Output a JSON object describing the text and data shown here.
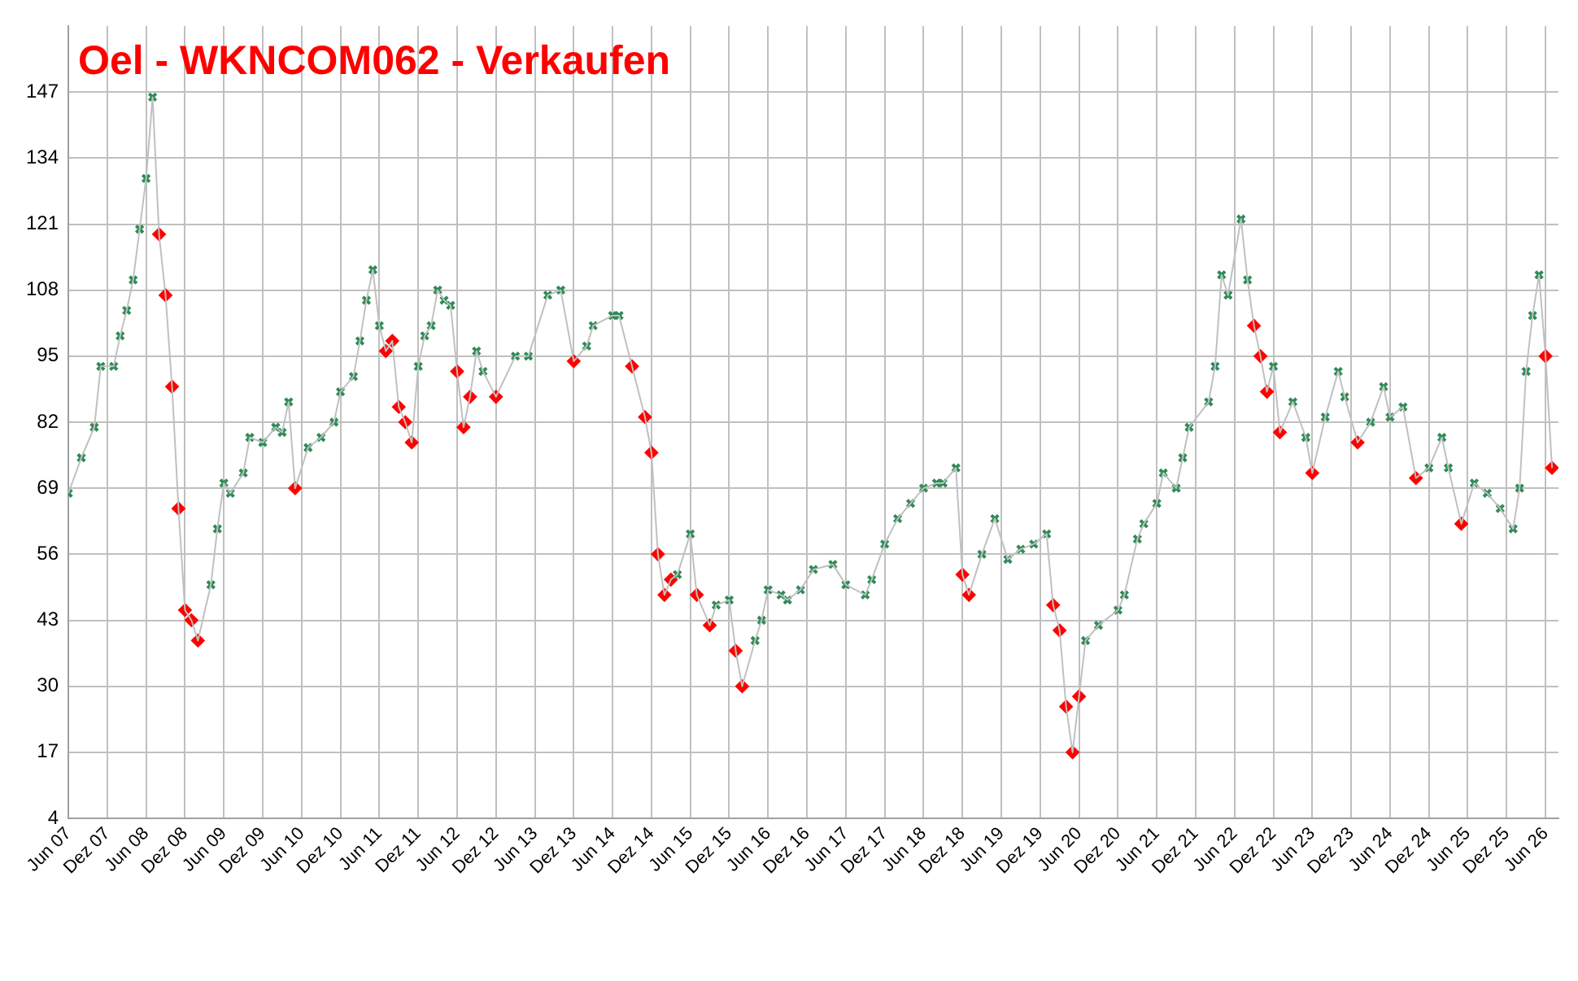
{
  "chart_data": {
    "type": "line",
    "title": "Oel - WKNCOM062 - Verkaufen",
    "xlim": [
      "2007-06",
      "2026-08"
    ],
    "xticks": [
      {
        "value": "2007-06",
        "label": "Jun 07"
      },
      {
        "value": "2007-12",
        "label": "Dez 07"
      },
      {
        "value": "2008-06",
        "label": "Jun 08"
      },
      {
        "value": "2008-12",
        "label": "Dez 08"
      },
      {
        "value": "2009-06",
        "label": "Jun 09"
      },
      {
        "value": "2009-12",
        "label": "Dez 09"
      },
      {
        "value": "2010-06",
        "label": "Jun 10"
      },
      {
        "value": "2010-12",
        "label": "Dez 10"
      },
      {
        "value": "2011-06",
        "label": "Jun 11"
      },
      {
        "value": "2011-12",
        "label": "Dez 11"
      },
      {
        "value": "2012-06",
        "label": "Jun 12"
      },
      {
        "value": "2012-12",
        "label": "Dez 12"
      },
      {
        "value": "2013-06",
        "label": "Jun 13"
      },
      {
        "value": "2013-12",
        "label": "Dez 13"
      },
      {
        "value": "2014-06",
        "label": "Jun 14"
      },
      {
        "value": "2014-12",
        "label": "Dez 14"
      },
      {
        "value": "2015-06",
        "label": "Jun 15"
      },
      {
        "value": "2015-12",
        "label": "Dez 15"
      },
      {
        "value": "2016-06",
        "label": "Jun 16"
      },
      {
        "value": "2016-12",
        "label": "Dez 16"
      },
      {
        "value": "2017-06",
        "label": "Jun 17"
      },
      {
        "value": "2017-12",
        "label": "Dez 17"
      },
      {
        "value": "2018-06",
        "label": "Jun 18"
      },
      {
        "value": "2018-12",
        "label": "Dez 18"
      },
      {
        "value": "2019-06",
        "label": "Jun 19"
      },
      {
        "value": "2019-12",
        "label": "Dez 19"
      },
      {
        "value": "2020-06",
        "label": "Jun 20"
      },
      {
        "value": "2020-12",
        "label": "Dez 20"
      },
      {
        "value": "2021-06",
        "label": "Jun 21"
      },
      {
        "value": "2021-12",
        "label": "Dez 21"
      },
      {
        "value": "2022-06",
        "label": "Jun 22"
      },
      {
        "value": "2022-12",
        "label": "Dez 22"
      },
      {
        "value": "2023-06",
        "label": "Jun 23"
      },
      {
        "value": "2023-12",
        "label": "Dez 23"
      },
      {
        "value": "2024-06",
        "label": "Jun 24"
      },
      {
        "value": "2024-12",
        "label": "Dez 24"
      },
      {
        "value": "2025-06",
        "label": "Jun 25"
      },
      {
        "value": "2025-12",
        "label": "Dez 25"
      },
      {
        "value": "2026-06",
        "label": "Jun 26"
      }
    ],
    "ylim": [
      4,
      160
    ],
    "yticks": [
      4,
      17,
      30,
      43,
      56,
      69,
      82,
      95,
      108,
      121,
      134,
      147
    ],
    "grid": true,
    "legend": false,
    "series": [
      {
        "color": "#c0c0c0",
        "marker": "none",
        "x": [
          "2007-06",
          "2007-08",
          "2007-10",
          "2007-11",
          "2008-01",
          "2008-02",
          "2008-03",
          "2008-04",
          "2008-05",
          "2008-06",
          "2008-07",
          "2008-08",
          "2008-09",
          "2008-10",
          "2008-11",
          "2008-12",
          "2009-01",
          "2009-02",
          "2009-04",
          "2009-05",
          "2009-06",
          "2009-07",
          "2009-09",
          "2009-10",
          "2009-12",
          "2010-02",
          "2010-03",
          "2010-04",
          "2010-05",
          "2010-07",
          "2010-09",
          "2010-11",
          "2010-12",
          "2011-02",
          "2011-03",
          "2011-04",
          "2011-05",
          "2011-06",
          "2011-07",
          "2011-08",
          "2011-09",
          "2011-10",
          "2011-11",
          "2011-12",
          "2012-01",
          "2012-02",
          "2012-03",
          "2012-04",
          "2012-05",
          "2012-06",
          "2012-07",
          "2012-08",
          "2012-09",
          "2012-10",
          "2012-12",
          "2013-03",
          "2013-05",
          "2013-08",
          "2013-10",
          "2013-12",
          "2014-02",
          "2014-03",
          "2014-06",
          "2014-07",
          "2014-09",
          "2014-11",
          "2014-12",
          "2015-01",
          "2015-02",
          "2015-03",
          "2015-04",
          "2015-06",
          "2015-07",
          "2015-09",
          "2015-10",
          "2015-12",
          "2016-01",
          "2016-02",
          "2016-04",
          "2016-05",
          "2016-06",
          "2016-08",
          "2016-09",
          "2016-11",
          "2017-01",
          "2017-04",
          "2017-06",
          "2017-09",
          "2017-10",
          "2017-12",
          "2018-02",
          "2018-04",
          "2018-06",
          "2018-08",
          "2018-09",
          "2018-11",
          "2018-12",
          "2019-01",
          "2019-03",
          "2019-05",
          "2019-07",
          "2019-09",
          "2019-11",
          "2020-01",
          "2020-02",
          "2020-03",
          "2020-04",
          "2020-05",
          "2020-06",
          "2020-07",
          "2020-09",
          "2020-12",
          "2021-01",
          "2021-03",
          "2021-04",
          "2021-06",
          "2021-07",
          "2021-09",
          "2021-10",
          "2021-11",
          "2022-02",
          "2022-03",
          "2022-04",
          "2022-05",
          "2022-07",
          "2022-08",
          "2022-09",
          "2022-10",
          "2022-11",
          "2022-12",
          "2023-01",
          "2023-03",
          "2023-05",
          "2023-06",
          "2023-08",
          "2023-10",
          "2023-11",
          "2024-01",
          "2024-03",
          "2024-05",
          "2024-06",
          "2024-08",
          "2024-10",
          "2024-12",
          "2025-02",
          "2025-03",
          "2025-05",
          "2025-07",
          "2025-09",
          "2025-11",
          "2026-01",
          "2026-02",
          "2026-03",
          "2026-04",
          "2026-05",
          "2026-06",
          "2026-07"
        ],
        "values": [
          68,
          75,
          81,
          93,
          93,
          99,
          104,
          110,
          120,
          130,
          146,
          119,
          107,
          89,
          65,
          45,
          43,
          39,
          50,
          61,
          70,
          68,
          72,
          79,
          78,
          81,
          80,
          86,
          69,
          77,
          79,
          82,
          88,
          91,
          98,
          106,
          112,
          101,
          96,
          98,
          85,
          82,
          78,
          93,
          99,
          101,
          108,
          106,
          105,
          92,
          81,
          87,
          96,
          92,
          87,
          95,
          95,
          107,
          108,
          94,
          97,
          101,
          103,
          103,
          93,
          83,
          76,
          56,
          48,
          51,
          52,
          60,
          48,
          42,
          46,
          47,
          37,
          30,
          39,
          43,
          49,
          48,
          47,
          49,
          53,
          54,
          50,
          48,
          51,
          58,
          63,
          66,
          69,
          70,
          70,
          73,
          52,
          48,
          56,
          63,
          55,
          57,
          58,
          60,
          46,
          41,
          26,
          17,
          28,
          39,
          42,
          45,
          48,
          59,
          62,
          66,
          72,
          69,
          75,
          81,
          86,
          93,
          111,
          107,
          122,
          110,
          101,
          95,
          88,
          93,
          80,
          86,
          79,
          72,
          83,
          92,
          87,
          78,
          82,
          89,
          83,
          85,
          71,
          73,
          79,
          73,
          62,
          70,
          68,
          65,
          61,
          69,
          92,
          103,
          111,
          95,
          73
        ]
      },
      {
        "type": "scatter",
        "color": "#2e8b57",
        "marker": "cross",
        "x": [
          "2007-06",
          "2007-08",
          "2007-10",
          "2007-11",
          "2008-01",
          "2008-02",
          "2008-03",
          "2008-04",
          "2008-05",
          "2008-06",
          "2008-07",
          "2009-04",
          "2009-05",
          "2009-06",
          "2009-07",
          "2009-09",
          "2009-10",
          "2009-12",
          "2010-02",
          "2010-03",
          "2010-04",
          "2010-07",
          "2010-09",
          "2010-11",
          "2010-12",
          "2011-02",
          "2011-03",
          "2011-04",
          "2011-05",
          "2011-06",
          "2011-12",
          "2012-01",
          "2012-02",
          "2012-03",
          "2012-04",
          "2012-05",
          "2012-09",
          "2012-10",
          "2013-03",
          "2013-05",
          "2013-08",
          "2013-10",
          "2014-02",
          "2014-03",
          "2014-06",
          "2014-07",
          "2015-04",
          "2015-06",
          "2015-10",
          "2015-12",
          "2016-04",
          "2016-05",
          "2016-06",
          "2016-08",
          "2016-09",
          "2016-11",
          "2017-01",
          "2017-04",
          "2017-06",
          "2017-09",
          "2017-10",
          "2017-12",
          "2018-02",
          "2018-04",
          "2018-06",
          "2018-08",
          "2018-09",
          "2018-11",
          "2019-03",
          "2019-05",
          "2019-07",
          "2019-09",
          "2019-11",
          "2020-01",
          "2020-07",
          "2020-09",
          "2020-12",
          "2021-01",
          "2021-03",
          "2021-04",
          "2021-06",
          "2021-07",
          "2021-09",
          "2021-10",
          "2021-11",
          "2022-02",
          "2022-03",
          "2022-04",
          "2022-05",
          "2022-07",
          "2022-08",
          "2022-12",
          "2023-03",
          "2023-05",
          "2023-08",
          "2023-10",
          "2023-11",
          "2024-03",
          "2024-05",
          "2024-06",
          "2024-08",
          "2024-12",
          "2025-02",
          "2025-03",
          "2025-07",
          "2025-09",
          "2025-11",
          "2026-01",
          "2026-02",
          "2026-03",
          "2026-04",
          "2026-05"
        ],
        "values": [
          68,
          75,
          81,
          93,
          93,
          99,
          104,
          110,
          120,
          130,
          146,
          50,
          61,
          70,
          68,
          72,
          79,
          78,
          81,
          80,
          86,
          77,
          79,
          82,
          88,
          91,
          98,
          106,
          112,
          101,
          93,
          99,
          101,
          108,
          106,
          105,
          96,
          92,
          95,
          95,
          107,
          108,
          97,
          101,
          103,
          103,
          52,
          60,
          46,
          47,
          39,
          43,
          49,
          48,
          47,
          49,
          53,
          54,
          50,
          48,
          51,
          58,
          63,
          66,
          69,
          70,
          70,
          73,
          56,
          63,
          55,
          57,
          58,
          60,
          39,
          42,
          45,
          48,
          59,
          62,
          66,
          72,
          69,
          75,
          81,
          86,
          93,
          111,
          107,
          122,
          110,
          93,
          86,
          79,
          83,
          92,
          87,
          82,
          89,
          83,
          85,
          73,
          79,
          73,
          70,
          68,
          65,
          61,
          69,
          92,
          103,
          111
        ]
      },
      {
        "type": "scatter",
        "color": "#ff0000",
        "marker": "diamond",
        "x": [
          "2008-08",
          "2008-09",
          "2008-10",
          "2008-11",
          "2008-12",
          "2009-01",
          "2009-02",
          "2010-05",
          "2011-07",
          "2011-08",
          "2011-09",
          "2011-10",
          "2011-11",
          "2012-06",
          "2012-07",
          "2012-08",
          "2012-12",
          "2013-12",
          "2014-09",
          "2014-11",
          "2014-12",
          "2015-01",
          "2015-02",
          "2015-03",
          "2015-07",
          "2015-09",
          "2016-01",
          "2016-02",
          "2018-12",
          "2019-01",
          "2020-02",
          "2020-03",
          "2020-04",
          "2020-05",
          "2020-06",
          "2022-09",
          "2022-10",
          "2022-11",
          "2023-01",
          "2023-06",
          "2024-01",
          "2024-10",
          "2025-05",
          "2026-06",
          "2026-07"
        ],
        "values": [
          119,
          107,
          89,
          65,
          45,
          43,
          39,
          69,
          96,
          98,
          85,
          82,
          78,
          92,
          81,
          87,
          87,
          94,
          93,
          83,
          76,
          56,
          48,
          51,
          48,
          42,
          37,
          30,
          52,
          48,
          46,
          41,
          26,
          17,
          28,
          101,
          95,
          88,
          80,
          72,
          78,
          71,
          62,
          95,
          73
        ]
      }
    ]
  }
}
